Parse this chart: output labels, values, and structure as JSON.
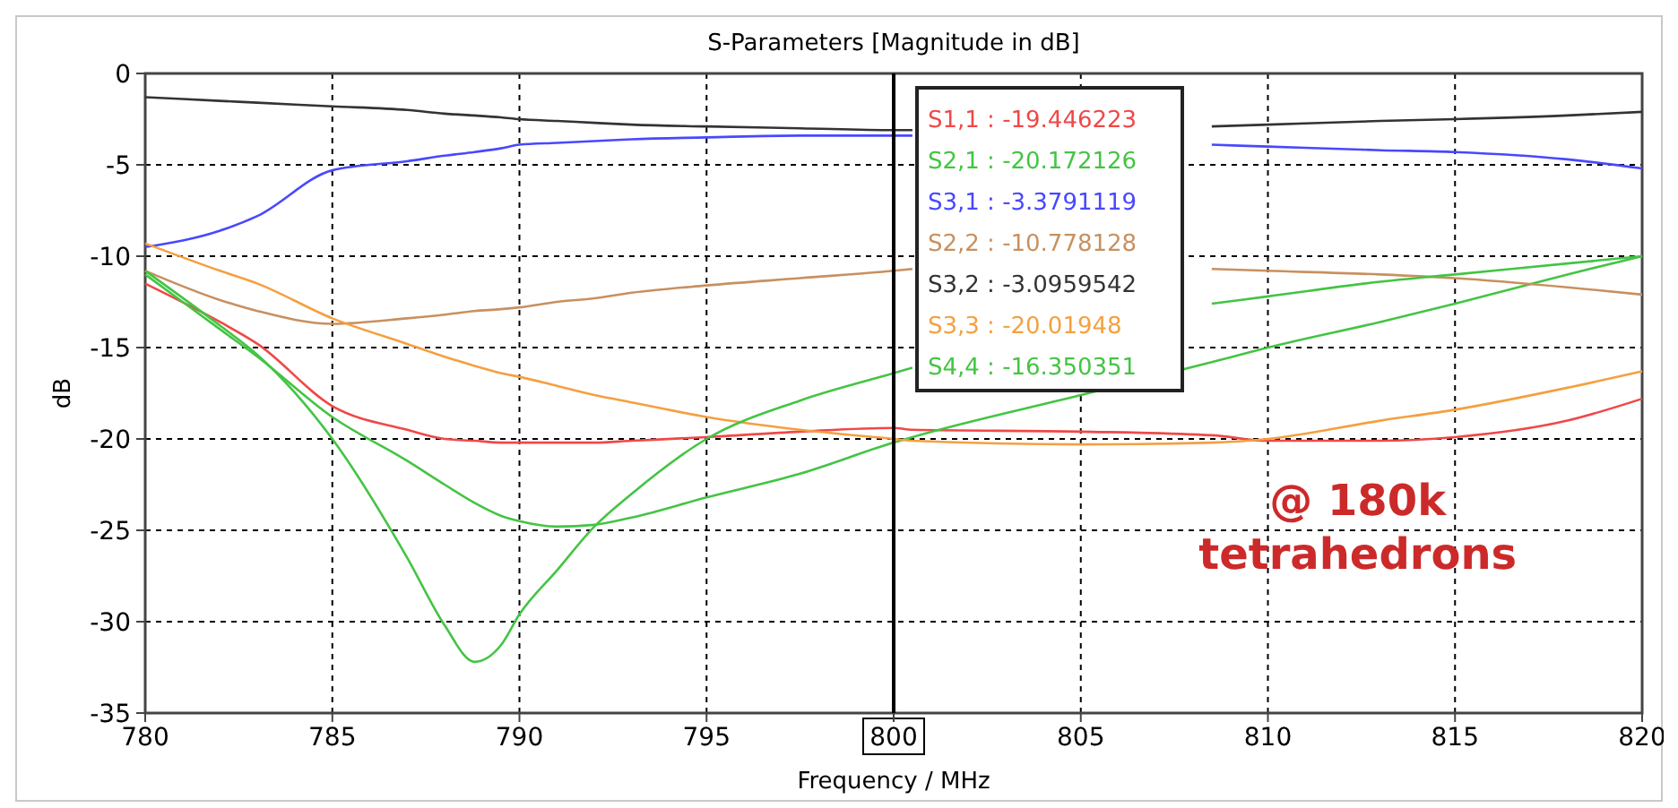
{
  "chart_data": {
    "type": "line",
    "title": "S-Parameters [Magnitude in dB]",
    "xlabel": "Frequency / MHz",
    "ylabel": "dB",
    "xlim": [
      780,
      820
    ],
    "ylim": [
      -35,
      0
    ],
    "xticks": [
      780,
      785,
      790,
      795,
      {
        "value": 800,
        "label": null
      },
      805,
      810,
      815,
      820
    ],
    "yticks": [
      0,
      -5,
      -10,
      -15,
      -20,
      -25,
      -30,
      -35
    ],
    "grid": true,
    "marker": "none",
    "line_style": "solid",
    "ref_lines": [
      {
        "axis": "x",
        "value": 800,
        "label": "800",
        "color": "#000000"
      }
    ],
    "annotations": [
      "S1,1 : -19.446223",
      "S2,1 : -20.172126",
      "S3,1 : -3.3791119",
      "S2,2 : -10.778128",
      "S3,2 : -3.0959542",
      "S3,3 : -20.01948",
      "S4,4 : -16.350351",
      "@ 180k\ntetrahedrons"
    ],
    "x": [
      780,
      782,
      783,
      785,
      787,
      788,
      788.8,
      789.5,
      790,
      791,
      792,
      793,
      795,
      797.5,
      800,
      800.5,
      805,
      808.5,
      810,
      813,
      815,
      818,
      820
    ],
    "series": [
      {
        "color": "#f04848",
        "values": [
          -11.5,
          -13.6,
          -14.8,
          -18.2,
          -19.5,
          -20.0,
          -20.1,
          -20.2,
          -20.2,
          -20.2,
          -20.2,
          -20.1,
          -19.9,
          -19.6,
          -19.4,
          -19.5,
          -19.6,
          -19.8,
          -20.1,
          -20.1,
          -19.9,
          -19.0,
          -17.8
        ]
      },
      {
        "color": "#44c444",
        "values": [
          -11.0,
          -14.0,
          -15.5,
          -18.8,
          -21.2,
          -22.5,
          -23.5,
          -24.2,
          -24.5,
          -24.8,
          -24.7,
          -24.3,
          -23.2,
          -21.9,
          -20.2,
          -19.9,
          -17.6,
          -15.8,
          -15.0,
          -13.6,
          -12.6,
          -11.0,
          -10.0
        ]
      },
      {
        "color": "#4848ff",
        "values": [
          -9.5,
          -8.6,
          -7.8,
          -5.3,
          -4.8,
          -4.5,
          -4.3,
          -4.1,
          -3.9,
          -3.8,
          -3.7,
          -3.6,
          -3.5,
          -3.4,
          -3.4,
          -3.4,
          null,
          -3.9,
          -4.0,
          -4.2,
          -4.3,
          -4.7,
          -5.2
        ]
      },
      {
        "color": "#c89060",
        "values": [
          -10.8,
          -12.4,
          -13.0,
          -13.7,
          -13.4,
          -13.2,
          -13.0,
          -12.9,
          -12.8,
          -12.5,
          -12.3,
          -12.0,
          -11.6,
          -11.2,
          -10.8,
          -10.7,
          null,
          -10.7,
          -10.8,
          -11.0,
          -11.2,
          -11.7,
          -12.1
        ]
      },
      {
        "color": "#333333",
        "values": [
          -1.3,
          -1.5,
          -1.6,
          -1.8,
          -2.0,
          -2.2,
          -2.3,
          -2.4,
          -2.5,
          -2.6,
          -2.7,
          -2.8,
          -2.9,
          -3.0,
          -3.1,
          -3.1,
          null,
          -2.9,
          -2.8,
          -2.6,
          -2.5,
          -2.3,
          -2.1
        ]
      },
      {
        "color": "#f4a040",
        "values": [
          -9.3,
          -10.8,
          -11.5,
          -13.4,
          -14.8,
          -15.5,
          -16.0,
          -16.4,
          -16.6,
          -17.1,
          -17.6,
          -18.0,
          -18.8,
          -19.5,
          -20.0,
          -20.1,
          -20.3,
          -20.2,
          -20.0,
          -19.0,
          -18.4,
          -17.2,
          -16.3
        ]
      },
      {
        "color": "#44c444",
        "values": [
          -10.8,
          -13.8,
          -15.4,
          -20.0,
          -26.5,
          -30.2,
          -32.2,
          -31.3,
          -29.6,
          -27.2,
          -24.8,
          -23.0,
          -20.0,
          -17.9,
          -16.4,
          -16.1,
          null,
          -12.6,
          -12.2,
          -11.4,
          -11.0,
          -10.4,
          -10.0
        ]
      }
    ]
  }
}
